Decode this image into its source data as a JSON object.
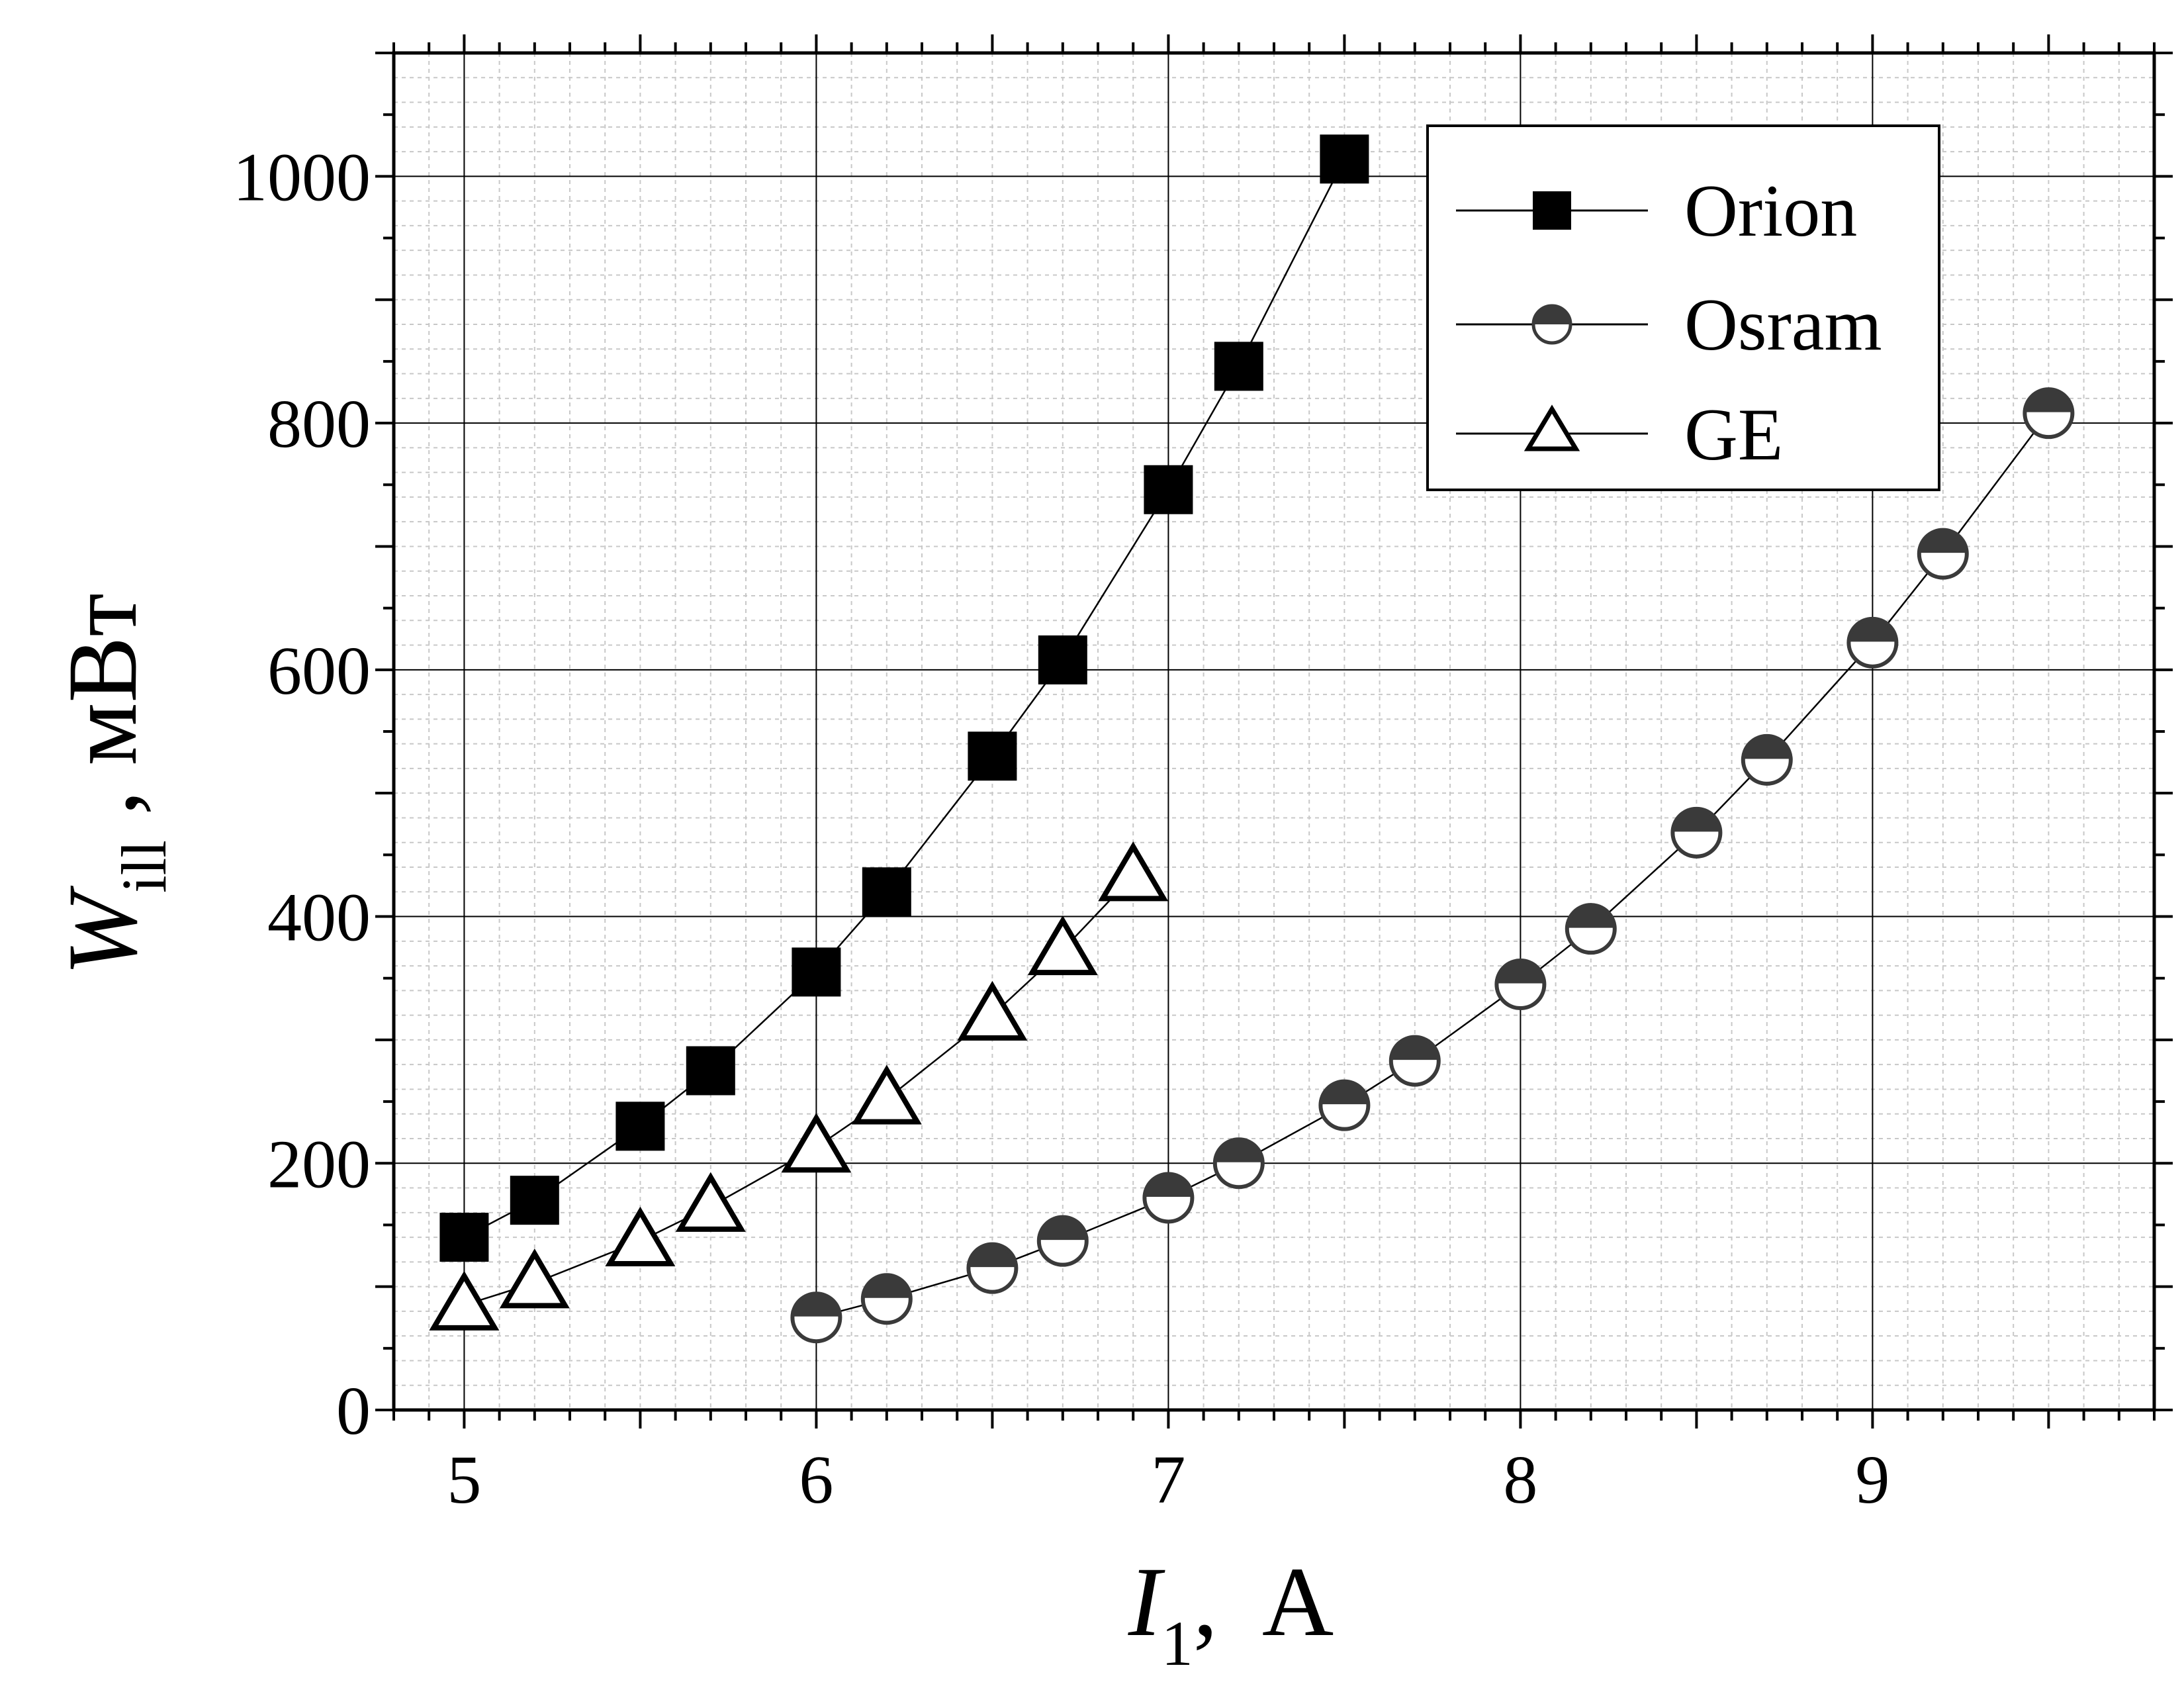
{
  "chart_data": {
    "type": "scatter",
    "title": "",
    "xlabel": {
      "main": "I",
      "sub": "1",
      "unit": ",  A"
    },
    "ylabel": {
      "main": "W",
      "sub": "ill",
      "unit": " , мВт"
    },
    "xlim": [
      4.8,
      9.8
    ],
    "ylim": [
      0,
      1100
    ],
    "x_ticks": [
      5,
      6,
      7,
      8,
      9
    ],
    "y_ticks": [
      0,
      200,
      400,
      600,
      800,
      1000
    ],
    "grid": true,
    "legend_position": "top-right",
    "series": [
      {
        "name": "Orion",
        "marker": "filled-square",
        "color": "#000000",
        "x": [
          5.0,
          5.2,
          5.5,
          5.7,
          6.0,
          6.2,
          6.5,
          6.7,
          7.0,
          7.2,
          7.5
        ],
        "y": [
          140,
          170,
          230,
          275,
          355,
          420,
          530,
          608,
          746,
          846,
          1014
        ]
      },
      {
        "name": "Osram",
        "marker": "half-filled-circle",
        "color": "#3a3a3a",
        "x": [
          6.0,
          6.2,
          6.5,
          6.7,
          7.0,
          7.2,
          7.5,
          7.7,
          8.0,
          8.2,
          8.5,
          8.7,
          9.0,
          9.2,
          9.5
        ],
        "y": [
          75,
          90,
          115,
          137,
          172,
          200,
          247,
          283,
          345,
          390,
          468,
          527,
          622,
          694,
          808
        ]
      },
      {
        "name": "GE",
        "marker": "open-triangle",
        "color": "#000000",
        "x": [
          5.0,
          5.2,
          5.5,
          5.7,
          6.0,
          6.2,
          6.5,
          6.7,
          6.9
        ],
        "y": [
          85,
          103,
          137,
          165,
          213,
          252,
          320,
          373,
          433
        ]
      }
    ]
  }
}
